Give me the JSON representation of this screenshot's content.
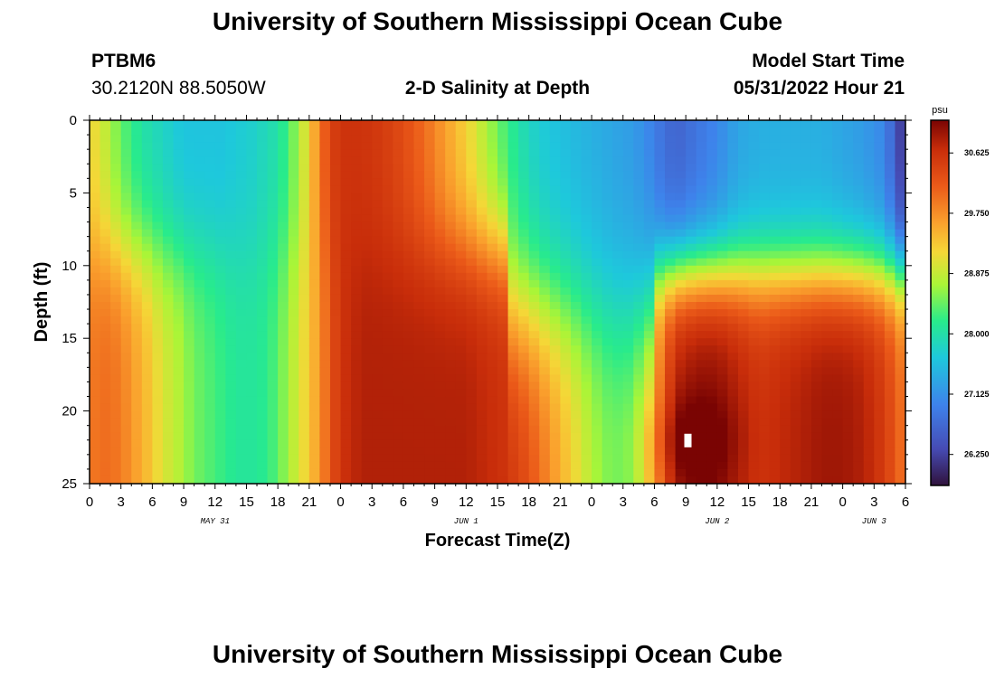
{
  "page": {
    "title_top": "University of Southern Mississippi Ocean Cube",
    "title_bottom": "University of Southern Mississippi Ocean Cube",
    "station": "PTBM6",
    "coords": "30.2120N  88.5050W",
    "product": "2-D Salinity at Depth",
    "model_start_label": "Model Start Time",
    "model_start_value": "05/31/2022 Hour 21"
  },
  "chart_data": {
    "type": "heatmap",
    "title": "2-D Salinity at Depth",
    "xlabel": "Forecast Time(Z)",
    "ylabel": "Depth (ft)",
    "x_range_hours": [
      0,
      78
    ],
    "y_range_ft": [
      0,
      25
    ],
    "x_tick_labels": [
      "0",
      "3",
      "6",
      "9",
      "12",
      "15",
      "18",
      "21",
      "0",
      "3",
      "6",
      "9",
      "12",
      "15",
      "18",
      "21",
      "0",
      "3",
      "6",
      "9",
      "12",
      "15",
      "18",
      "21",
      "0",
      "3",
      "6"
    ],
    "y_tick_labels": [
      "0",
      "5",
      "10",
      "15",
      "20",
      "25"
    ],
    "date_labels": [
      {
        "label": "MAY 31",
        "hour": 12
      },
      {
        "label": "JUN 1",
        "hour": 36
      },
      {
        "label": "JUN 2",
        "hour": 60
      },
      {
        "label": "JUN 3",
        "hour": 75
      }
    ],
    "colorbar": {
      "unit": "psu",
      "range": [
        25.8,
        31.1
      ],
      "ticks": [
        "30.625",
        "29.750",
        "28.875",
        "28.000",
        "27.125",
        "26.250"
      ],
      "tick_values": [
        30.625,
        29.75,
        28.875,
        28.0,
        27.125,
        26.25
      ]
    },
    "columns": [
      {
        "hour": 0,
        "surface": 29.2,
        "deep": 29.9
      },
      {
        "hour": 1,
        "surface": 29.0,
        "deep": 30.0
      },
      {
        "hour": 2,
        "surface": 28.7,
        "deep": 30.0
      },
      {
        "hour": 3,
        "surface": 28.4,
        "deep": 29.9
      },
      {
        "hour": 4,
        "surface": 28.2,
        "deep": 29.7
      },
      {
        "hour": 5,
        "surface": 28.0,
        "deep": 29.5
      },
      {
        "hour": 6,
        "surface": 27.9,
        "deep": 29.3
      },
      {
        "hour": 7,
        "surface": 27.8,
        "deep": 29.0
      },
      {
        "hour": 8,
        "surface": 27.7,
        "deep": 28.9
      },
      {
        "hour": 9,
        "surface": 27.6,
        "deep": 28.7
      },
      {
        "hour": 10,
        "surface": 27.6,
        "deep": 28.5
      },
      {
        "hour": 11,
        "surface": 27.6,
        "deep": 28.4
      },
      {
        "hour": 12,
        "surface": 27.6,
        "deep": 28.3
      },
      {
        "hour": 13,
        "surface": 27.6,
        "deep": 28.2
      },
      {
        "hour": 14,
        "surface": 27.7,
        "deep": 28.1
      },
      {
        "hour": 15,
        "surface": 27.7,
        "deep": 28.1
      },
      {
        "hour": 16,
        "surface": 27.8,
        "deep": 28.1
      },
      {
        "hour": 17,
        "surface": 27.9,
        "deep": 28.2
      },
      {
        "hour": 18,
        "surface": 28.0,
        "deep": 28.4
      },
      {
        "hour": 19,
        "surface": 28.3,
        "deep": 28.7
      },
      {
        "hour": 20,
        "surface": 28.7,
        "deep": 29.0
      },
      {
        "hour": 21,
        "surface": 29.2,
        "deep": 29.3
      },
      {
        "hour": 22,
        "surface": 29.9,
        "deep": 29.7
      },
      {
        "hour": 23,
        "surface": 30.4,
        "deep": 30.2
      },
      {
        "hour": 24,
        "surface": 30.6,
        "deep": 30.6
      },
      {
        "hour": 26,
        "surface": 30.6,
        "deep": 30.8
      },
      {
        "hour": 28,
        "surface": 30.5,
        "deep": 30.8
      },
      {
        "hour": 30,
        "surface": 30.3,
        "deep": 30.8
      },
      {
        "hour": 32,
        "surface": 30.0,
        "deep": 30.8
      },
      {
        "hour": 34,
        "surface": 29.6,
        "deep": 30.8
      },
      {
        "hour": 36,
        "surface": 29.2,
        "deep": 30.8
      },
      {
        "hour": 38,
        "surface": 28.7,
        "deep": 30.7
      },
      {
        "hour": 40,
        "surface": 28.2,
        "deep": 30.6
      },
      {
        "hour": 42,
        "surface": 27.8,
        "deep": 30.3
      },
      {
        "hour": 44,
        "surface": 27.6,
        "deep": 29.8
      },
      {
        "hour": 46,
        "surface": 27.5,
        "deep": 29.3
      },
      {
        "hour": 48,
        "surface": 27.4,
        "deep": 28.8
      },
      {
        "hour": 50,
        "surface": 27.3,
        "deep": 28.5
      },
      {
        "hour": 52,
        "surface": 27.2,
        "deep": 28.6
      },
      {
        "hour": 54,
        "surface": 26.9,
        "deep": 29.6
      },
      {
        "hour": 56,
        "surface": 26.6,
        "deep": 30.8
      },
      {
        "hour": 58,
        "surface": 26.8,
        "deep": 31.0
      },
      {
        "hour": 60,
        "surface": 27.0,
        "deep": 31.0
      },
      {
        "hour": 62,
        "surface": 27.3,
        "deep": 30.8
      },
      {
        "hour": 64,
        "surface": 27.4,
        "deep": 30.6
      },
      {
        "hour": 66,
        "surface": 27.4,
        "deep": 30.7
      },
      {
        "hour": 68,
        "surface": 27.4,
        "deep": 30.8
      },
      {
        "hour": 70,
        "surface": 27.4,
        "deep": 30.9
      },
      {
        "hour": 72,
        "surface": 27.3,
        "deep": 30.9
      },
      {
        "hour": 74,
        "surface": 27.2,
        "deep": 30.8
      },
      {
        "hour": 76,
        "surface": 27.0,
        "deep": 30.5
      },
      {
        "hour": 78,
        "surface": 26.0,
        "deep": 29.9
      }
    ],
    "max_marker": {
      "hour": 57.2,
      "depth_ft": 22.0
    }
  }
}
